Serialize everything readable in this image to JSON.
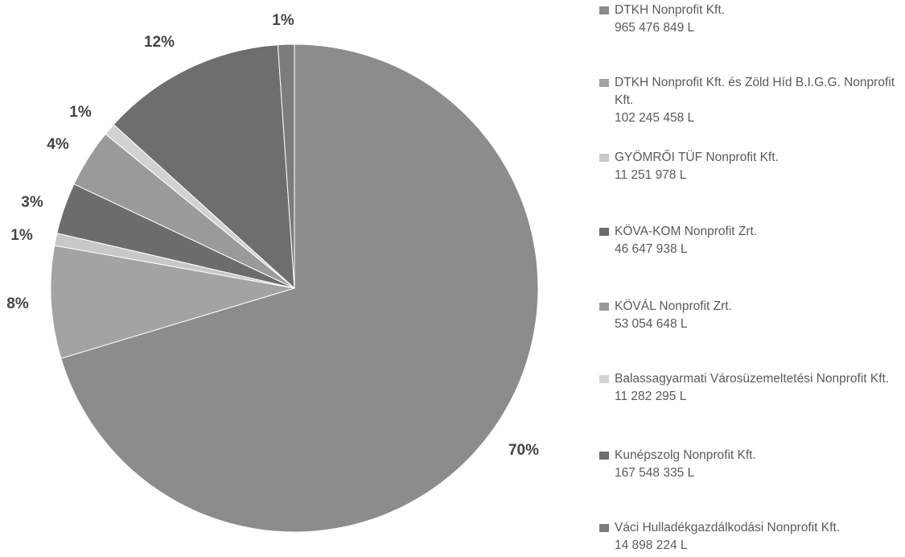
{
  "chart_data": {
    "type": "pie",
    "slices": [
      {
        "label": "DTKH Nonprofit Kft.",
        "volume": "965 476 849 L",
        "percent": 70,
        "percent_label": "70%",
        "color": "#8c8c8c"
      },
      {
        "label": "DTKH Nonprofit Kft. és Zöld Híd B.I.G.G. Nonprofit Kft.",
        "volume": "102 245 458 L",
        "percent": 8,
        "percent_label": "8%",
        "color": "#a3a3a3"
      },
      {
        "label": "GYÖMRŐI TÜF Nonprofit Kft.",
        "volume": "11 251 978 L",
        "percent": 1,
        "percent_label": "1%",
        "color": "#c8c8c8"
      },
      {
        "label": "KÖVA-KOM Nonprofit Zrt.",
        "volume": "46 647 938 L",
        "percent": 3,
        "percent_label": "3%",
        "color": "#6c6c6c"
      },
      {
        "label": "KÖVÁL Nonprofit Zrt.",
        "volume": "53 054 648 L",
        "percent": 4,
        "percent_label": "4%",
        "color": "#9a9a9a"
      },
      {
        "label": "Balassagyarmati Városüzemeltetési Nonprofit Kft.",
        "volume": "11 282 295 L",
        "percent": 1,
        "percent_label": "1%",
        "color": "#d2d2d2"
      },
      {
        "label": "Kunépszolg Nonprofit Kft.",
        "volume": "167 548 335 L",
        "percent": 12,
        "percent_label": "12%",
        "color": "#6e6e6e"
      },
      {
        "label": "Váci Hulladékgazdálkodási Nonprofit Kft.",
        "volume": "14 898 224 L",
        "percent": 1,
        "percent_label": "1%",
        "color": "#7c7c7c"
      }
    ]
  }
}
